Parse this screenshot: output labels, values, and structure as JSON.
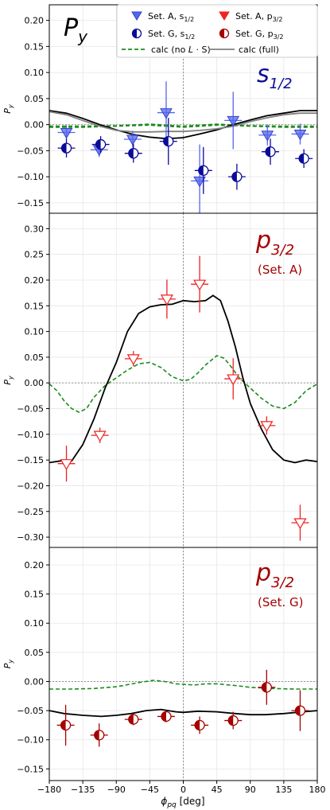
{
  "figure_label": "P",
  "figure_label_sub": "y",
  "xlabel": "ϕ",
  "xlabel_sub": "pq",
  "xlabel_unit": " [deg]",
  "xticks": [
    -180,
    -135,
    -90,
    -45,
    0,
    45,
    90,
    135,
    180
  ],
  "legend": {
    "setA_s": "Set. A, s",
    "setG_s": "Set. G, s",
    "setA_p": "Set. A, p",
    "setG_p": "Set. G, p",
    "sub_s": "1/2",
    "sub_p": "3/2",
    "calc_nols": "calc (no ",
    "calc_nols_L": "L",
    "calc_nols_S": " · S)",
    "calc_full": "calc (full)"
  },
  "colors": {
    "blue_fill": "#5566ee",
    "blue_dark": "#0a0a9a",
    "red": "#ee2222",
    "red_dark": "#a50000",
    "green": "#1a8c1a",
    "black": "#000000",
    "gray": "#808080"
  },
  "chart_data": [
    {
      "type": "scatter",
      "ylabel": "P",
      "ylabel_sub": "y",
      "annotation_main": "s",
      "annotation_sub": "1/2",
      "annotation_second": "",
      "annotation_color": "#0a0a9a",
      "xlim": [
        -180,
        180
      ],
      "ylim": [
        -0.17,
        0.23
      ],
      "yticks": [
        -0.15,
        -0.1,
        -0.05,
        0.0,
        0.05,
        0.1,
        0.15,
        0.2
      ],
      "ytick_labels": [
        "−0.15",
        "−0.10",
        "−0.05",
        "0.00",
        "0.05",
        "0.10",
        "0.15",
        "0.20"
      ],
      "series": [
        {
          "name": "Set. A, s1/2",
          "marker": "tri_filled",
          "color": "#5566ee",
          "points": [
            [
              -157,
              -0.015,
              0.014
            ],
            [
              -113,
              -0.048,
              0.014
            ],
            [
              -68,
              -0.028,
              0.016
            ],
            [
              -23,
              0.023,
              0.06
            ],
            [
              22,
              -0.108,
              0.07
            ],
            [
              67,
              0.008,
              0.055
            ],
            [
              113,
              -0.02,
              0.02
            ],
            [
              157,
              -0.018,
              0.02
            ]
          ]
        },
        {
          "name": "Set. G, s1/2",
          "marker": "circ_half",
          "color": "#0a0a9a",
          "points": [
            [
              -157,
              -0.045,
              0.018
            ],
            [
              -111,
              -0.038,
              0.016
            ],
            [
              -67,
              -0.055,
              0.018
            ],
            [
              -20,
              -0.032,
              0.045
            ],
            [
              27,
              -0.088,
              0.045
            ],
            [
              72,
              -0.1,
              0.025
            ],
            [
              117,
              -0.052,
              0.025
            ],
            [
              162,
              -0.065,
              0.018
            ]
          ]
        },
        {
          "name": "calc (no L·S)",
          "marker": "dashed",
          "color": "#1a8c1a",
          "curve": [
            [
              -180,
              -0.003
            ],
            [
              -135,
              -0.003
            ],
            [
              -90,
              -0.002
            ],
            [
              -45,
              0.001
            ],
            [
              0,
              -0.003
            ],
            [
              45,
              0.001
            ],
            [
              90,
              -0.002
            ],
            [
              135,
              -0.003
            ],
            [
              180,
              -0.003
            ]
          ]
        },
        {
          "name": "calc (no L·S) 2",
          "marker": "dashed",
          "color": "#1a8c1a",
          "curve": [
            [
              -180,
              -0.005
            ],
            [
              -135,
              -0.005
            ],
            [
              -90,
              -0.003
            ],
            [
              -45,
              -0.001
            ],
            [
              0,
              -0.005
            ],
            [
              45,
              -0.001
            ],
            [
              90,
              -0.003
            ],
            [
              135,
              -0.005
            ],
            [
              180,
              -0.005
            ]
          ]
        },
        {
          "name": "calc (full)",
          "marker": "solid",
          "color": "#000000",
          "curve": [
            [
              -180,
              0.027
            ],
            [
              -157,
              0.022
            ],
            [
              -135,
              0.012
            ],
            [
              -112,
              0.0
            ],
            [
              -90,
              -0.01
            ],
            [
              -67,
              -0.019
            ],
            [
              -45,
              -0.024
            ],
            [
              -22,
              -0.027
            ],
            [
              0,
              -0.025
            ],
            [
              22,
              -0.018
            ],
            [
              45,
              -0.01
            ],
            [
              67,
              0.0
            ],
            [
              90,
              0.009
            ],
            [
              112,
              0.017
            ],
            [
              135,
              0.022
            ],
            [
              157,
              0.027
            ],
            [
              180,
              0.027
            ]
          ]
        },
        {
          "name": "calc (full) gray",
          "marker": "solid",
          "color": "#808080",
          "curve": [
            [
              -180,
              0.025
            ],
            [
              -157,
              0.019
            ],
            [
              -135,
              0.008
            ],
            [
              -112,
              -0.003
            ],
            [
              -90,
              -0.011
            ],
            [
              -67,
              -0.014
            ],
            [
              -45,
              -0.014
            ],
            [
              -22,
              -0.013
            ],
            [
              0,
              -0.013
            ],
            [
              22,
              -0.011
            ],
            [
              45,
              -0.008
            ],
            [
              67,
              -0.003
            ],
            [
              90,
              0.006
            ],
            [
              112,
              0.013
            ],
            [
              135,
              0.019
            ],
            [
              157,
              0.022
            ],
            [
              180,
              0.022
            ]
          ]
        }
      ]
    },
    {
      "type": "scatter",
      "ylabel": "P",
      "ylabel_sub": "y",
      "annotation_main": "p",
      "annotation_sub": "3/2",
      "annotation_second": "(Set. A)",
      "annotation_color": "#a50000",
      "xlim": [
        -180,
        180
      ],
      "ylim": [
        -0.32,
        0.33
      ],
      "yticks": [
        -0.3,
        -0.25,
        -0.2,
        -0.15,
        -0.1,
        -0.05,
        0.0,
        0.05,
        0.1,
        0.15,
        0.2,
        0.25,
        0.3
      ],
      "ytick_labels": [
        "−0.30",
        "−0.25",
        "−0.20",
        "−0.15",
        "−0.10",
        "−0.05",
        "0.00",
        "0.05",
        "0.10",
        "0.15",
        "0.20",
        "0.25",
        "0.30"
      ],
      "series": [
        {
          "name": "Set. A, p3/2",
          "marker": "tri_open",
          "color": "#ee2222",
          "points": [
            [
              -157,
              -0.157,
              0.035
            ],
            [
              -112,
              -0.102,
              0.015
            ],
            [
              -67,
              0.047,
              0.015
            ],
            [
              -22,
              0.163,
              0.038
            ],
            [
              22,
              0.192,
              0.055
            ],
            [
              67,
              0.008,
              0.04
            ],
            [
              112,
              -0.083,
              0.018
            ],
            [
              157,
              -0.272,
              0.035
            ]
          ]
        },
        {
          "name": "calc (no L·S)",
          "marker": "dashed",
          "color": "#1a8c1a",
          "curve": [
            [
              -180,
              -0.002
            ],
            [
              -170,
              -0.015
            ],
            [
              -160,
              -0.035
            ],
            [
              -150,
              -0.05
            ],
            [
              -140,
              -0.057
            ],
            [
              -130,
              -0.05
            ],
            [
              -120,
              -0.028
            ],
            [
              -105,
              -0.005
            ],
            [
              -90,
              0.01
            ],
            [
              -75,
              0.025
            ],
            [
              -60,
              0.037
            ],
            [
              -45,
              0.04
            ],
            [
              -30,
              0.03
            ],
            [
              -15,
              0.012
            ],
            [
              0,
              0.004
            ],
            [
              10,
              0.007
            ],
            [
              20,
              0.02
            ],
            [
              30,
              0.035
            ],
            [
              45,
              0.053
            ],
            [
              55,
              0.048
            ],
            [
              65,
              0.03
            ],
            [
              75,
              0.01
            ],
            [
              90,
              -0.01
            ],
            [
              105,
              -0.03
            ],
            [
              120,
              -0.045
            ],
            [
              135,
              -0.05
            ],
            [
              150,
              -0.038
            ],
            [
              165,
              -0.015
            ],
            [
              180,
              -0.002
            ]
          ]
        },
        {
          "name": "calc (full)",
          "marker": "solid",
          "color": "#000000",
          "curve": [
            [
              -180,
              -0.155
            ],
            [
              -157,
              -0.15
            ],
            [
              -150,
              -0.152
            ],
            [
              -135,
              -0.12
            ],
            [
              -120,
              -0.07
            ],
            [
              -105,
              -0.01
            ],
            [
              -90,
              0.04
            ],
            [
              -75,
              0.1
            ],
            [
              -60,
              0.135
            ],
            [
              -45,
              0.148
            ],
            [
              -30,
              0.152
            ],
            [
              -15,
              0.153
            ],
            [
              0,
              0.16
            ],
            [
              15,
              0.158
            ],
            [
              30,
              0.16
            ],
            [
              40,
              0.17
            ],
            [
              50,
              0.16
            ],
            [
              60,
              0.12
            ],
            [
              70,
              0.07
            ],
            [
              80,
              0.01
            ],
            [
              90,
              -0.04
            ],
            [
              105,
              -0.09
            ],
            [
              120,
              -0.13
            ],
            [
              135,
              -0.15
            ],
            [
              150,
              -0.155
            ],
            [
              165,
              -0.15
            ],
            [
              180,
              -0.153
            ]
          ]
        }
      ]
    },
    {
      "type": "scatter",
      "ylabel": "P",
      "ylabel_sub": "y",
      "annotation_main": "p",
      "annotation_sub": "3/2",
      "annotation_second": "(Set. G)",
      "annotation_color": "#a50000",
      "xlim": [
        -180,
        180
      ],
      "ylim": [
        -0.17,
        0.23
      ],
      "yticks": [
        -0.15,
        -0.1,
        -0.05,
        0.0,
        0.05,
        0.1,
        0.15,
        0.2
      ],
      "ytick_labels": [
        "−0.15",
        "−0.10",
        "−0.05",
        "0.00",
        "0.05",
        "0.10",
        "0.15",
        "0.20"
      ],
      "series": [
        {
          "name": "Set. G, p3/2",
          "marker": "circ_half",
          "color": "#a50000",
          "points": [
            [
              -158,
              -0.075,
              0.035
            ],
            [
              -113,
              -0.092,
              0.02
            ],
            [
              -67,
              -0.065,
              0.01
            ],
            [
              -23,
              -0.06,
              0.01
            ],
            [
              22,
              -0.075,
              0.015
            ],
            [
              67,
              -0.067,
              0.015
            ],
            [
              112,
              -0.01,
              0.03
            ],
            [
              157,
              -0.05,
              0.035
            ]
          ]
        },
        {
          "name": "calc (no L·S)",
          "marker": "dashed",
          "color": "#1a8c1a",
          "curve": [
            [
              -180,
              -0.013
            ],
            [
              -150,
              -0.013
            ],
            [
              -120,
              -0.012
            ],
            [
              -90,
              -0.009
            ],
            [
              -60,
              -0.002
            ],
            [
              -40,
              0.002
            ],
            [
              -25,
              0.0
            ],
            [
              -10,
              -0.004
            ],
            [
              0,
              -0.005
            ],
            [
              15,
              -0.006
            ],
            [
              30,
              -0.004
            ],
            [
              45,
              -0.004
            ],
            [
              70,
              -0.007
            ],
            [
              90,
              -0.01
            ],
            [
              120,
              -0.012
            ],
            [
              150,
              -0.013
            ],
            [
              180,
              -0.013
            ]
          ]
        },
        {
          "name": "calc (full)",
          "marker": "solid",
          "color": "#000000",
          "curve": [
            [
              -180,
              -0.05
            ],
            [
              -160,
              -0.055
            ],
            [
              -135,
              -0.058
            ],
            [
              -110,
              -0.06
            ],
            [
              -90,
              -0.058
            ],
            [
              -70,
              -0.055
            ],
            [
              -50,
              -0.05
            ],
            [
              -30,
              -0.048
            ],
            [
              -10,
              -0.052
            ],
            [
              0,
              -0.053
            ],
            [
              20,
              -0.051
            ],
            [
              45,
              -0.052
            ],
            [
              70,
              -0.055
            ],
            [
              90,
              -0.057
            ],
            [
              110,
              -0.057
            ],
            [
              135,
              -0.055
            ],
            [
              160,
              -0.052
            ],
            [
              180,
              -0.05
            ]
          ]
        }
      ]
    }
  ]
}
